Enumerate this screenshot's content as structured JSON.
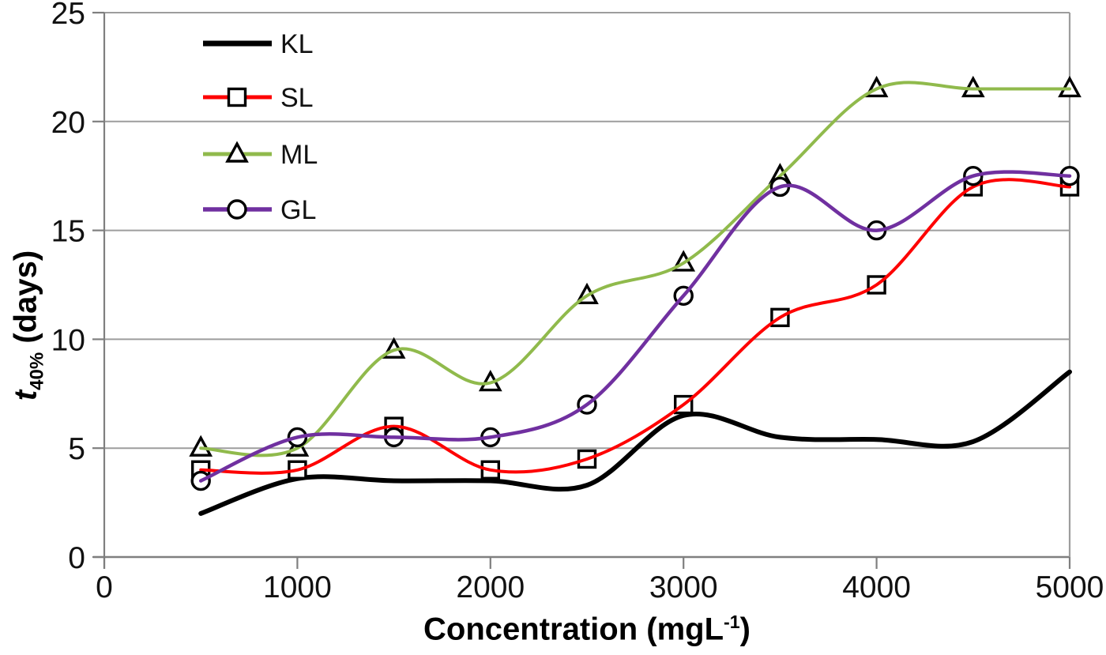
{
  "figure": {
    "xlabel": {
      "main": "Concentration (mgL",
      "sup": "-1",
      "close": ")"
    },
    "ylabel": {
      "t": "t",
      "sub": "40%",
      "rest": " (days)"
    }
  },
  "chart_data": {
    "type": "line",
    "title": "",
    "xlabel": "Concentration (mgL^-1)",
    "ylabel": "t40% (days)",
    "x": [
      500,
      1000,
      1500,
      2000,
      2500,
      3000,
      3500,
      4000,
      4500,
      5000
    ],
    "series": [
      {
        "name": "KL",
        "color": "#000000",
        "marker": "none",
        "line_width": 6,
        "values": [
          2.0,
          3.6,
          3.5,
          3.5,
          3.3,
          6.5,
          5.5,
          5.4,
          5.3,
          8.5
        ]
      },
      {
        "name": "SL",
        "color": "#FE0000",
        "marker": "square",
        "line_width": 4,
        "values": [
          4.0,
          4.0,
          6.0,
          4.0,
          4.5,
          7.0,
          11.0,
          12.5,
          17.0,
          17.0
        ]
      },
      {
        "name": "ML",
        "color": "#90BA4C",
        "marker": "triangle",
        "line_width": 4,
        "values": [
          5.0,
          5.0,
          9.5,
          8.0,
          12.0,
          13.5,
          17.5,
          21.5,
          21.5,
          21.5
        ]
      },
      {
        "name": "GL",
        "color": "#7030A0",
        "marker": "circle",
        "line_width": 4.5,
        "values": [
          3.5,
          5.5,
          5.5,
          5.5,
          7.0,
          12.0,
          17.0,
          15.0,
          17.5,
          17.5
        ]
      }
    ],
    "xlim": [
      0,
      5000
    ],
    "ylim": [
      0,
      25
    ],
    "xticks": [
      0,
      1000,
      2000,
      3000,
      4000,
      5000
    ],
    "yticks": [
      0,
      5,
      10,
      15,
      20,
      25
    ],
    "grid": "horizontal",
    "legend_position": "top-left-inside",
    "marker_stroke_color": "#000000"
  },
  "styles": {
    "grid_color": "#9d9d9d",
    "axis_color": "#7f7f7f",
    "tick_label_color": "#111111",
    "background": "#ffffff"
  }
}
